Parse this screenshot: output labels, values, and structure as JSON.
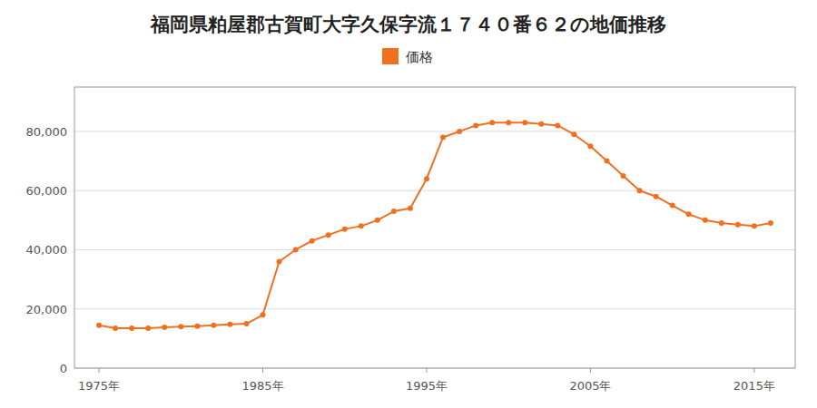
{
  "chart_data": {
    "type": "line",
    "title": "福岡県粕屋郡古賀町大字久保字流１７４０番６２の地価推移",
    "x": [
      1975,
      1976,
      1977,
      1978,
      1979,
      1980,
      1981,
      1982,
      1983,
      1984,
      1985,
      1986,
      1987,
      1988,
      1989,
      1990,
      1991,
      1992,
      1993,
      1994,
      1995,
      1996,
      1997,
      1998,
      1999,
      2000,
      2001,
      2002,
      2003,
      2004,
      2005,
      2006,
      2007,
      2008,
      2009,
      2010,
      2011,
      2012,
      2013,
      2014,
      2015,
      2016
    ],
    "series": [
      {
        "name": "価格",
        "color": "#f07020",
        "marker": "circle",
        "values": [
          14500,
          13500,
          13500,
          13500,
          13800,
          14000,
          14200,
          14500,
          14800,
          15000,
          18000,
          36000,
          40000,
          43000,
          45000,
          47000,
          48000,
          50000,
          53000,
          54000,
          64000,
          78000,
          80000,
          82000,
          83000,
          83000,
          83000,
          82500,
          82000,
          79000,
          75000,
          70000,
          65000,
          60000,
          58000,
          55000,
          52000,
          50000,
          49000,
          48500,
          48000,
          49000
        ]
      }
    ],
    "xlim": [
      1973.5,
      2017.5
    ],
    "xticks": [
      {
        "value": 1975,
        "label": "1975年"
      },
      {
        "value": 1985,
        "label": "1985年"
      },
      {
        "value": 1995,
        "label": "1995年"
      },
      {
        "value": 2005,
        "label": "2005年"
      },
      {
        "value": 2015,
        "label": "2015年"
      }
    ],
    "ylim": [
      0,
      95000
    ],
    "yticks": [
      0,
      {
        "value": 20000,
        "label": "20,000"
      },
      {
        "value": 40000,
        "label": "40,000"
      },
      {
        "value": 60000,
        "label": "60,000"
      },
      {
        "value": 80000,
        "label": "80,000"
      }
    ],
    "grid": true,
    "legend": "top"
  }
}
